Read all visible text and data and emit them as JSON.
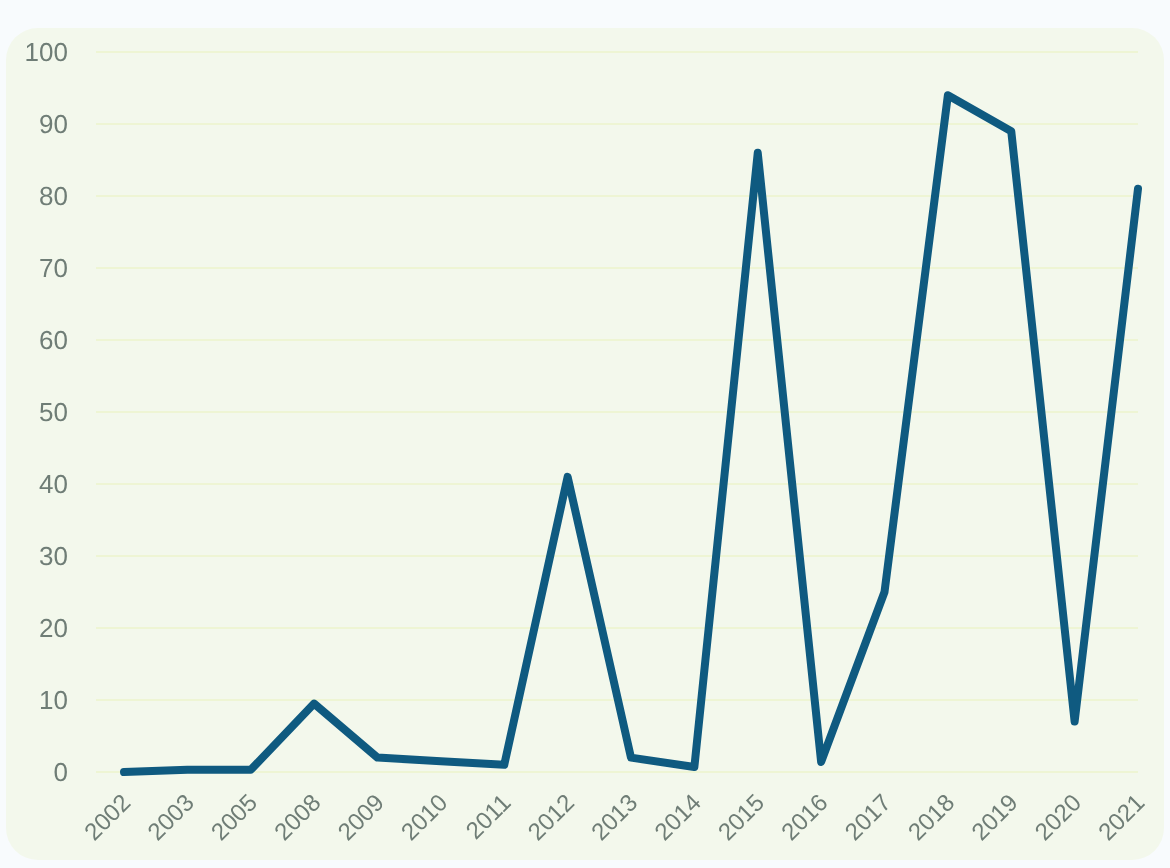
{
  "chart_data": {
    "type": "line",
    "categories": [
      "2002",
      "2003",
      "2005",
      "2008",
      "2009",
      "2010",
      "2011",
      "2012",
      "2013",
      "2014",
      "2015",
      "2016",
      "2017",
      "2018",
      "2019",
      "2020",
      "2021"
    ],
    "series": [
      {
        "color": "#0f5a80",
        "values": [
          0,
          0.3,
          0.3,
          9.5,
          2,
          1.5,
          1,
          41,
          2,
          0.7,
          86,
          1.4,
          25,
          94,
          89,
          7,
          81
        ]
      }
    ],
    "ylim": [
      0,
      100
    ],
    "yticks": [
      0,
      10,
      20,
      30,
      40,
      50,
      60,
      70,
      80,
      90,
      100
    ],
    "grid": "y",
    "marker": "none",
    "line_style": "solid"
  }
}
